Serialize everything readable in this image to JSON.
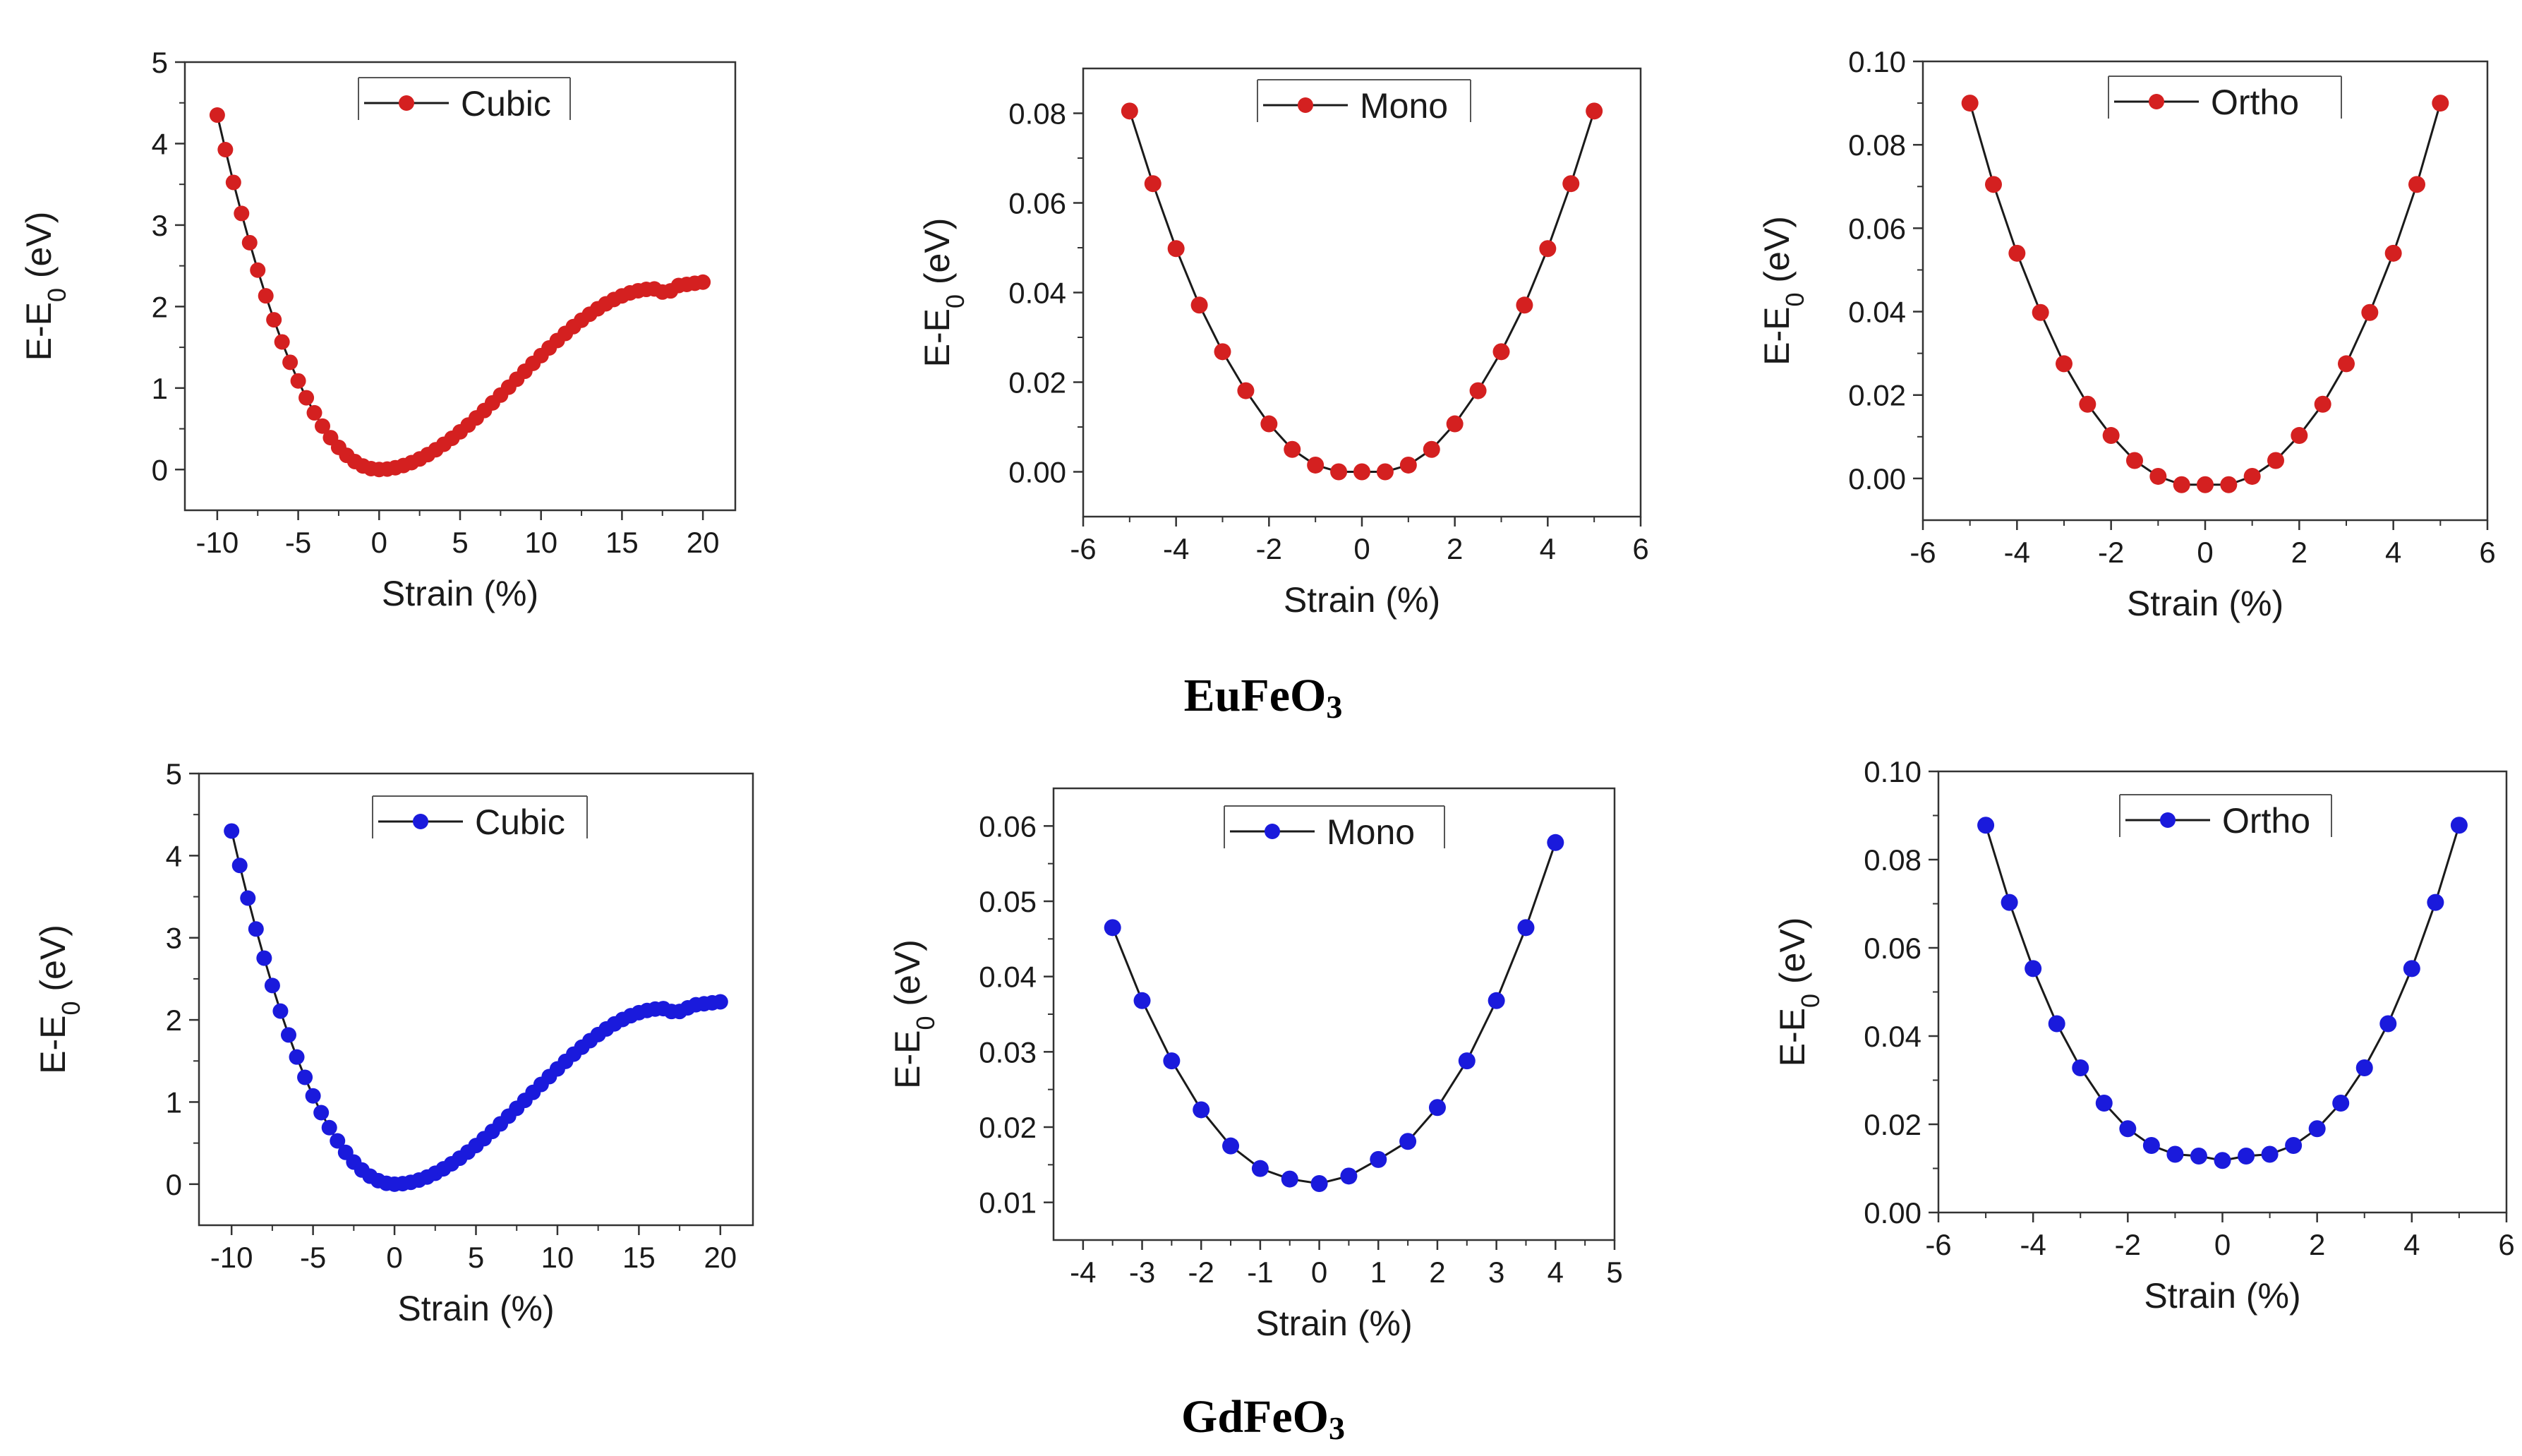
{
  "colors": {
    "red": "#d42020",
    "blue": "#1a1adc",
    "line": "#1a1a1a"
  },
  "groups": [
    {
      "name_main": "EuFeO",
      "name_sub": "3"
    },
    {
      "name_main": "GdFeO",
      "name_sub": "3"
    }
  ],
  "chart_data": [
    {
      "id": "eu-cubic",
      "type": "line",
      "color": "red",
      "series": [
        {
          "name": "Cubic",
          "kind": "cubic",
          "x_start": -10,
          "x_end": 20,
          "x_step": 0.5,
          "y_min": 0,
          "y_max_left": 4.35,
          "y_end": 2.3,
          "kink_x": 17
        }
      ],
      "legend": "Cubic",
      "xlabel": "Strain (%)",
      "ylabel": "E-E0 (eV)",
      "xlim": [
        -12,
        22
      ],
      "ylim": [
        -0.5,
        5
      ],
      "xticks": [
        -10,
        -5,
        0,
        5,
        10,
        15,
        20
      ],
      "xtick_labels": [
        "-10",
        "-5",
        "0",
        "5",
        "10",
        "15",
        "20"
      ],
      "yticks": [
        0,
        1,
        2,
        3,
        4,
        5
      ],
      "ytick_labels": [
        "0",
        "1",
        "2",
        "3",
        "4",
        "5"
      ]
    },
    {
      "id": "eu-mono",
      "type": "line",
      "color": "red",
      "series": [
        {
          "name": "Mono",
          "x": [
            -5,
            -4.5,
            -4,
            -3.5,
            -3,
            -2.5,
            -2,
            -1.5,
            -1,
            -0.5,
            0,
            0.5,
            1,
            1.5,
            2,
            2.5,
            3,
            3.5,
            4,
            4.5,
            5
          ],
          "y": [
            0.0805,
            0.0643,
            0.0498,
            0.0372,
            0.0268,
            0.0181,
            0.0107,
            0.005,
            0.0015,
            0.0,
            0.0,
            0.0,
            0.0015,
            0.005,
            0.0107,
            0.0181,
            0.0268,
            0.0372,
            0.0498,
            0.0643,
            0.0805
          ]
        }
      ],
      "legend": "Mono",
      "xlabel": "Strain (%)",
      "ylabel": "E-E0 (eV)",
      "xlim": [
        -6,
        6
      ],
      "ylim": [
        -0.01,
        0.09
      ],
      "xticks": [
        -6,
        -4,
        -2,
        0,
        2,
        4,
        6
      ],
      "xtick_labels": [
        "-6",
        "-4",
        "-2",
        "0",
        "2",
        "4",
        "6"
      ],
      "yticks": [
        0,
        0.02,
        0.04,
        0.06,
        0.08
      ],
      "ytick_labels": [
        "0.00",
        "0.02",
        "0.04",
        "0.06",
        "0.08"
      ]
    },
    {
      "id": "eu-ortho",
      "type": "line",
      "color": "red",
      "series": [
        {
          "name": "Ortho",
          "x": [
            -5,
            -4.5,
            -4,
            -3.5,
            -3,
            -2.5,
            -2,
            -1.5,
            -1,
            -0.5,
            0,
            0.5,
            1,
            1.5,
            2,
            2.5,
            3,
            3.5,
            4,
            4.5,
            5
          ],
          "y": [
            0.09,
            0.0705,
            0.054,
            0.0398,
            0.0275,
            0.0178,
            0.0103,
            0.0043,
            0.0005,
            -0.0015,
            -0.0015,
            -0.0015,
            0.0005,
            0.0043,
            0.0103,
            0.0178,
            0.0275,
            0.0398,
            0.054,
            0.0705,
            0.09
          ]
        }
      ],
      "legend": "Ortho",
      "xlabel": "Strain (%)",
      "ylabel": "E-E0 (eV)",
      "xlim": [
        -6,
        6
      ],
      "ylim": [
        -0.01,
        0.1
      ],
      "xticks": [
        -6,
        -4,
        -2,
        0,
        2,
        4,
        6
      ],
      "xtick_labels": [
        "-6",
        "-4",
        "-2",
        "0",
        "2",
        "4",
        "6"
      ],
      "yticks": [
        0,
        0.02,
        0.04,
        0.06,
        0.08,
        0.1
      ],
      "ytick_labels": [
        "0.00",
        "0.02",
        "0.04",
        "0.06",
        "0.08",
        "0.10"
      ]
    },
    {
      "id": "gd-cubic",
      "type": "line",
      "color": "blue",
      "series": [
        {
          "name": "Cubic",
          "kind": "cubic",
          "x_start": -10,
          "x_end": 20,
          "x_step": 0.5,
          "y_min": 0,
          "y_max_left": 4.3,
          "y_end": 2.22,
          "kink_x": 16.5
        }
      ],
      "legend": "Cubic",
      "xlabel": "Strain (%)",
      "ylabel": "E-E0 (eV)",
      "xlim": [
        -12,
        22
      ],
      "ylim": [
        -0.5,
        5
      ],
      "xticks": [
        -10,
        -5,
        0,
        5,
        10,
        15,
        20
      ],
      "xtick_labels": [
        "-10",
        "-5",
        "0",
        "5",
        "10",
        "15",
        "20"
      ],
      "yticks": [
        0,
        1,
        2,
        3,
        4,
        5
      ],
      "ytick_labels": [
        "0",
        "1",
        "2",
        "3",
        "4",
        "5"
      ]
    },
    {
      "id": "gd-mono",
      "type": "line",
      "color": "blue",
      "series": [
        {
          "name": "Mono",
          "x": [
            -3.5,
            -3,
            -2.5,
            -2,
            -1.5,
            -1,
            -0.5,
            0,
            0.5,
            1,
            1.5,
            2,
            2.5,
            3,
            3.5,
            4
          ],
          "y": [
            0.0465,
            0.0368,
            0.0288,
            0.0223,
            0.0175,
            0.0145,
            0.0131,
            0.0125,
            0.0135,
            0.0157,
            0.0181,
            0.0226,
            0.0288,
            0.0368,
            0.0465,
            0.0578
          ]
        }
      ],
      "legend": "Mono",
      "xlabel": "Strain (%)",
      "ylabel": "E-E0 (eV)",
      "xlim": [
        -4.5,
        5
      ],
      "ylim": [
        0.005,
        0.065
      ],
      "xticks": [
        -4,
        -3,
        -2,
        -1,
        0,
        1,
        2,
        3,
        4,
        5
      ],
      "xtick_labels": [
        "-4",
        "-3",
        "-2",
        "-1",
        "0",
        "1",
        "2",
        "3",
        "4",
        "5"
      ],
      "yticks": [
        0.01,
        0.02,
        0.03,
        0.04,
        0.05,
        0.06
      ],
      "ytick_labels": [
        "0.01",
        "0.02",
        "0.03",
        "0.04",
        "0.05",
        "0.06"
      ]
    },
    {
      "id": "gd-ortho",
      "type": "line",
      "color": "blue",
      "series": [
        {
          "name": "Ortho",
          "x": [
            -5,
            -4.5,
            -4,
            -3.5,
            -3,
            -2.5,
            -2,
            -1.5,
            -1,
            -0.5,
            0,
            0.5,
            1,
            1.5,
            2,
            2.5,
            3,
            3.5,
            4,
            4.5,
            5
          ],
          "y": [
            0.0878,
            0.0703,
            0.0553,
            0.0428,
            0.0328,
            0.0248,
            0.019,
            0.0152,
            0.0132,
            0.0128,
            0.0118,
            0.0128,
            0.0132,
            0.0152,
            0.019,
            0.0248,
            0.0328,
            0.0428,
            0.0553,
            0.0703,
            0.0878
          ]
        }
      ],
      "legend": "Ortho",
      "xlabel": "Strain (%)",
      "ylabel": "E-E0 (eV)",
      "xlim": [
        -6,
        6
      ],
      "ylim": [
        0,
        0.1
      ],
      "xticks": [
        -6,
        -4,
        -2,
        0,
        2,
        4,
        6
      ],
      "xtick_labels": [
        "-6",
        "-4",
        "-2",
        "0",
        "2",
        "4",
        "6"
      ],
      "yticks": [
        0,
        0.02,
        0.04,
        0.06,
        0.08,
        0.1
      ],
      "ytick_labels": [
        "0.00",
        "0.02",
        "0.04",
        "0.06",
        "0.08",
        "0.10"
      ]
    }
  ]
}
